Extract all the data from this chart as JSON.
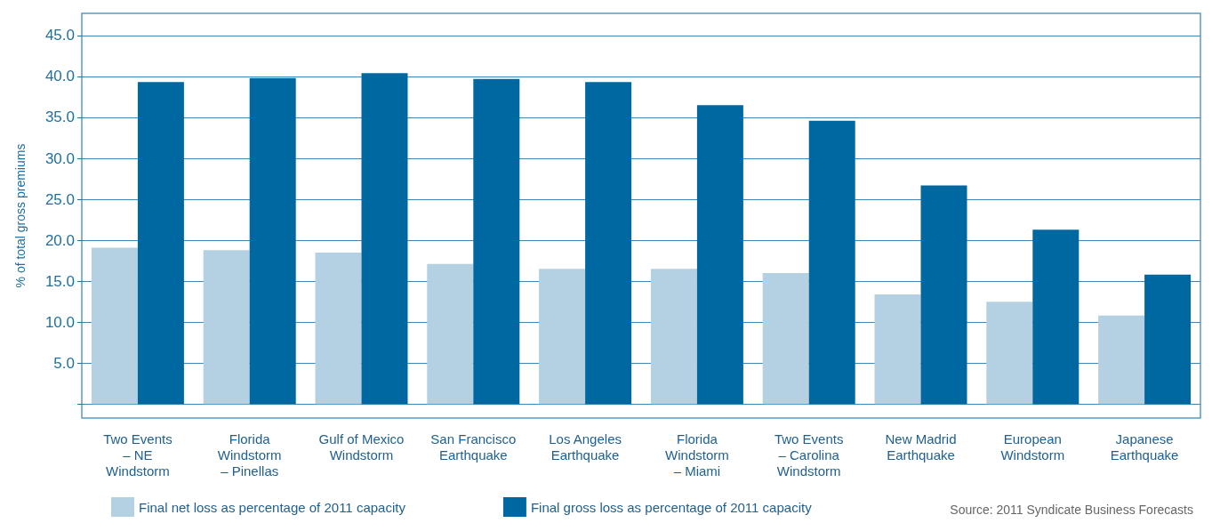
{
  "chart_data": {
    "type": "bar",
    "ylabel": "% of total gross premiums",
    "categories": [
      "Two Events\n– NE\nWindstorm",
      "Florida\nWindstorm\n– Pinellas",
      "Gulf of Mexico\nWindstorm",
      "San Francisco\nEarthquake",
      "Los Angeles\nEarthquake",
      "Florida\nWindstorm\n– Miami",
      "Two Events\n– Carolina\nWindstorm",
      "New Madrid\nEarthquake",
      "European\nWindstorm",
      "Japanese\nEarthquake"
    ],
    "series": [
      {
        "name": "Final net loss as percentage of 2011 capacity",
        "color": "#b3d1e2",
        "values": [
          19.1,
          18.8,
          18.5,
          17.1,
          16.5,
          16.5,
          16.0,
          13.4,
          12.5,
          10.8
        ]
      },
      {
        "name": "Final gross loss as percentage of 2011 capacity",
        "color": "#0068a0",
        "values": [
          39.3,
          39.8,
          40.4,
          39.7,
          39.3,
          36.5,
          34.6,
          26.7,
          21.3,
          15.8
        ]
      }
    ],
    "ylim": [
      -1.7,
      47.7
    ],
    "yticks": [
      {
        "value": 0,
        "label": null
      },
      {
        "value": 5,
        "label": "5.0"
      },
      {
        "value": 10,
        "label": "10.0"
      },
      {
        "value": 15,
        "label": "15.0"
      },
      {
        "value": 20,
        "label": "20.0"
      },
      {
        "value": 25,
        "label": "25.0"
      },
      {
        "value": 30,
        "label": "30.0"
      },
      {
        "value": 35,
        "label": "35.0"
      },
      {
        "value": 40,
        "label": "40.0"
      },
      {
        "value": 45,
        "label": "45.0"
      }
    ],
    "grid": true,
    "legend": "bottom left",
    "annotations": [
      "Source: 2011 Syndicate Business Forecasts"
    ]
  }
}
